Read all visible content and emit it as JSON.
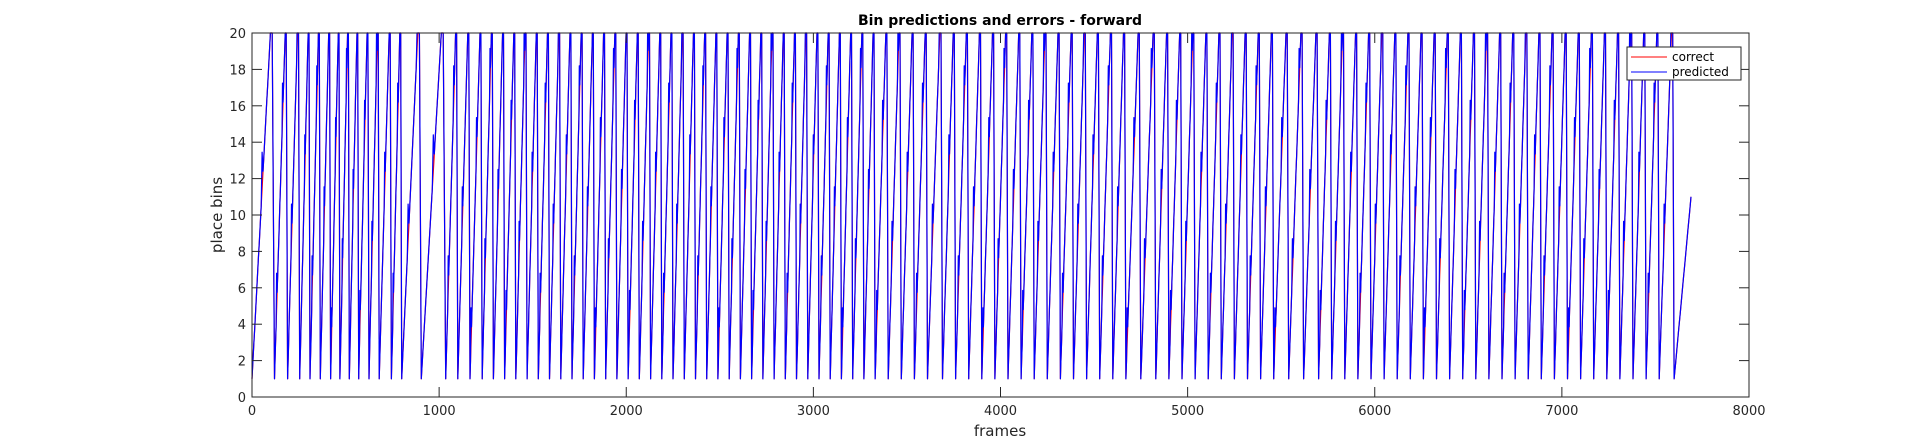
{
  "chart_data": {
    "type": "line",
    "title": "Bin predictions and errors - forward",
    "xlabel": "frames",
    "ylabel": "place bins",
    "xlim": [
      0,
      8000
    ],
    "ylim": [
      0,
      20
    ],
    "xticks": [
      0,
      1000,
      2000,
      3000,
      4000,
      5000,
      6000,
      7000,
      8000
    ],
    "yticks": [
      0,
      2,
      4,
      6,
      8,
      10,
      12,
      14,
      16,
      18,
      20
    ],
    "grid": false,
    "legend_position": "top-right",
    "x_end": 7690,
    "series": [
      {
        "name": "correct",
        "color": "#ff0000",
        "cycle_starts": [
          0,
          120,
          190,
          255,
          310,
          365,
          420,
          470,
          520,
          570,
          625,
          680,
          745,
          800,
          905,
          1035,
          1100,
          1165,
          1230,
          1290,
          1350,
          1410,
          1470,
          1530,
          1590,
          1650,
          1710,
          1770,
          1830,
          1890,
          1950,
          2010,
          2070,
          2130,
          2190,
          2250,
          2310,
          2370,
          2430,
          2490,
          2550,
          2610,
          2670,
          2730,
          2790,
          2850,
          2910,
          2970,
          3030,
          3090,
          3150,
          3210,
          3270,
          3330,
          3400,
          3470,
          3540,
          3610,
          3690,
          3760,
          3830,
          3900,
          3970,
          4040,
          4110,
          4180,
          4250,
          4320,
          4390,
          4460,
          4530,
          4600,
          4670,
          4750,
          4830,
          4900,
          4970,
          5040,
          5110,
          5180,
          5250,
          5320,
          5390,
          5460,
          5540,
          5620,
          5700,
          5770,
          5840,
          5910,
          5980,
          6050,
          6120,
          6190,
          6260,
          6330,
          6400,
          6470,
          6540,
          6610,
          6680,
          6750,
          6820,
          6890,
          6960,
          7030,
          7100,
          7170,
          7240,
          7310,
          7380,
          7450,
          7520,
          7600
        ],
        "end_value": 11
      },
      {
        "name": "predicted",
        "color": "#0000ff",
        "cycle_starts": [
          0,
          120,
          190,
          255,
          310,
          365,
          420,
          470,
          520,
          570,
          625,
          680,
          745,
          800,
          905,
          1035,
          1100,
          1165,
          1230,
          1290,
          1350,
          1410,
          1470,
          1530,
          1590,
          1650,
          1710,
          1770,
          1830,
          1890,
          1950,
          2010,
          2070,
          2130,
          2190,
          2250,
          2310,
          2370,
          2430,
          2490,
          2550,
          2610,
          2670,
          2730,
          2790,
          2850,
          2910,
          2970,
          3030,
          3090,
          3150,
          3210,
          3270,
          3330,
          3400,
          3470,
          3540,
          3610,
          3690,
          3760,
          3830,
          3900,
          3970,
          4040,
          4110,
          4180,
          4250,
          4320,
          4390,
          4460,
          4530,
          4600,
          4670,
          4750,
          4830,
          4900,
          4970,
          5040,
          5110,
          5180,
          5250,
          5320,
          5390,
          5460,
          5540,
          5620,
          5700,
          5770,
          5840,
          5910,
          5980,
          6050,
          6120,
          6190,
          6260,
          6330,
          6400,
          6470,
          6540,
          6610,
          6680,
          6750,
          6820,
          6890,
          6960,
          7030,
          7100,
          7170,
          7240,
          7310,
          7380,
          7450,
          7520,
          7600
        ],
        "end_value": 11
      }
    ]
  }
}
